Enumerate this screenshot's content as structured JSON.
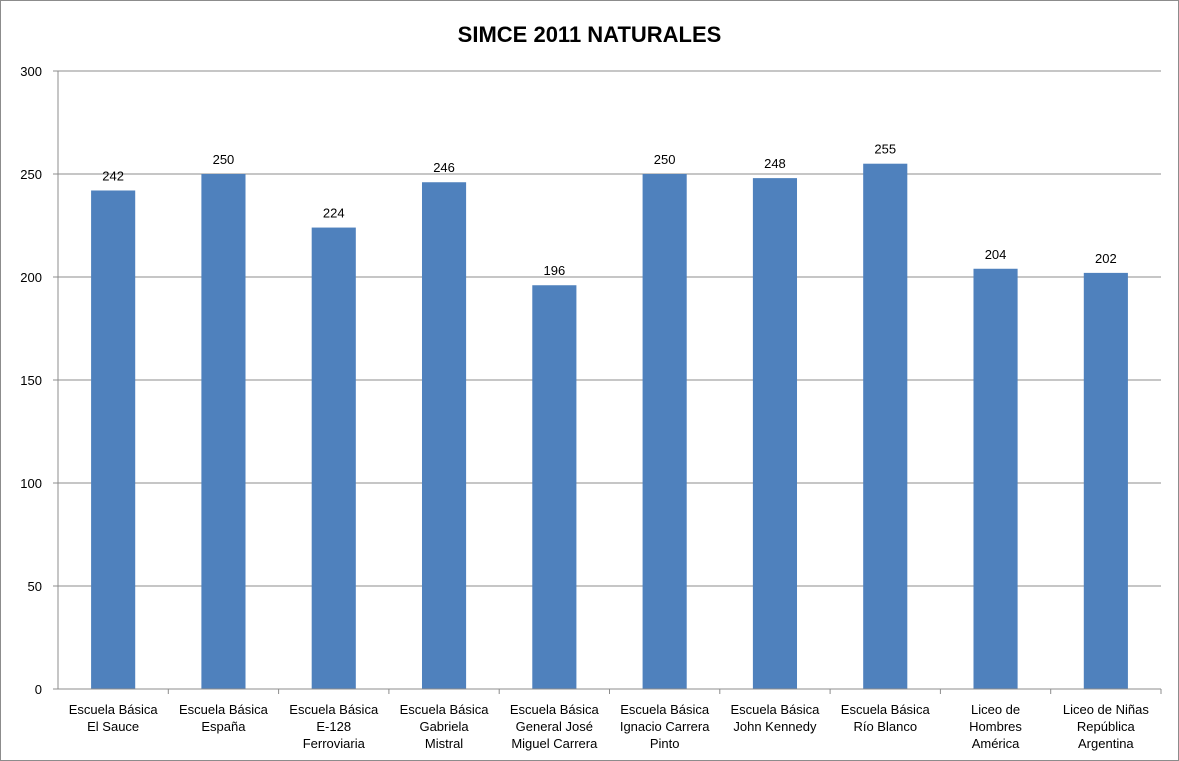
{
  "chart_data": {
    "type": "bar",
    "title": "SIMCE 2011 NATURALES",
    "xlabel": "",
    "ylabel": "",
    "ylim": [
      0,
      300
    ],
    "yticks": [
      0,
      50,
      100,
      150,
      200,
      250,
      300
    ],
    "grid": true,
    "legend": "none",
    "bar_color": "#4f81bd",
    "categories": [
      [
        "Escuela Básica",
        "El Sauce"
      ],
      [
        "Escuela Básica",
        "España"
      ],
      [
        "Escuela Básica",
        "E-128",
        "Ferroviaria"
      ],
      [
        "Escuela Básica",
        "Gabriela",
        "Mistral"
      ],
      [
        "Escuela Básica",
        "General José",
        "Miguel Carrera"
      ],
      [
        "Escuela Básica",
        "Ignacio Carrera",
        "Pinto"
      ],
      [
        "Escuela Básica",
        "John Kennedy"
      ],
      [
        "Escuela Básica",
        "Río Blanco"
      ],
      [
        "Liceo de",
        "Hombres",
        "América"
      ],
      [
        "Liceo de Niñas",
        "República",
        "Argentina"
      ]
    ],
    "values": [
      242,
      250,
      224,
      246,
      196,
      250,
      248,
      255,
      204,
      202
    ]
  }
}
